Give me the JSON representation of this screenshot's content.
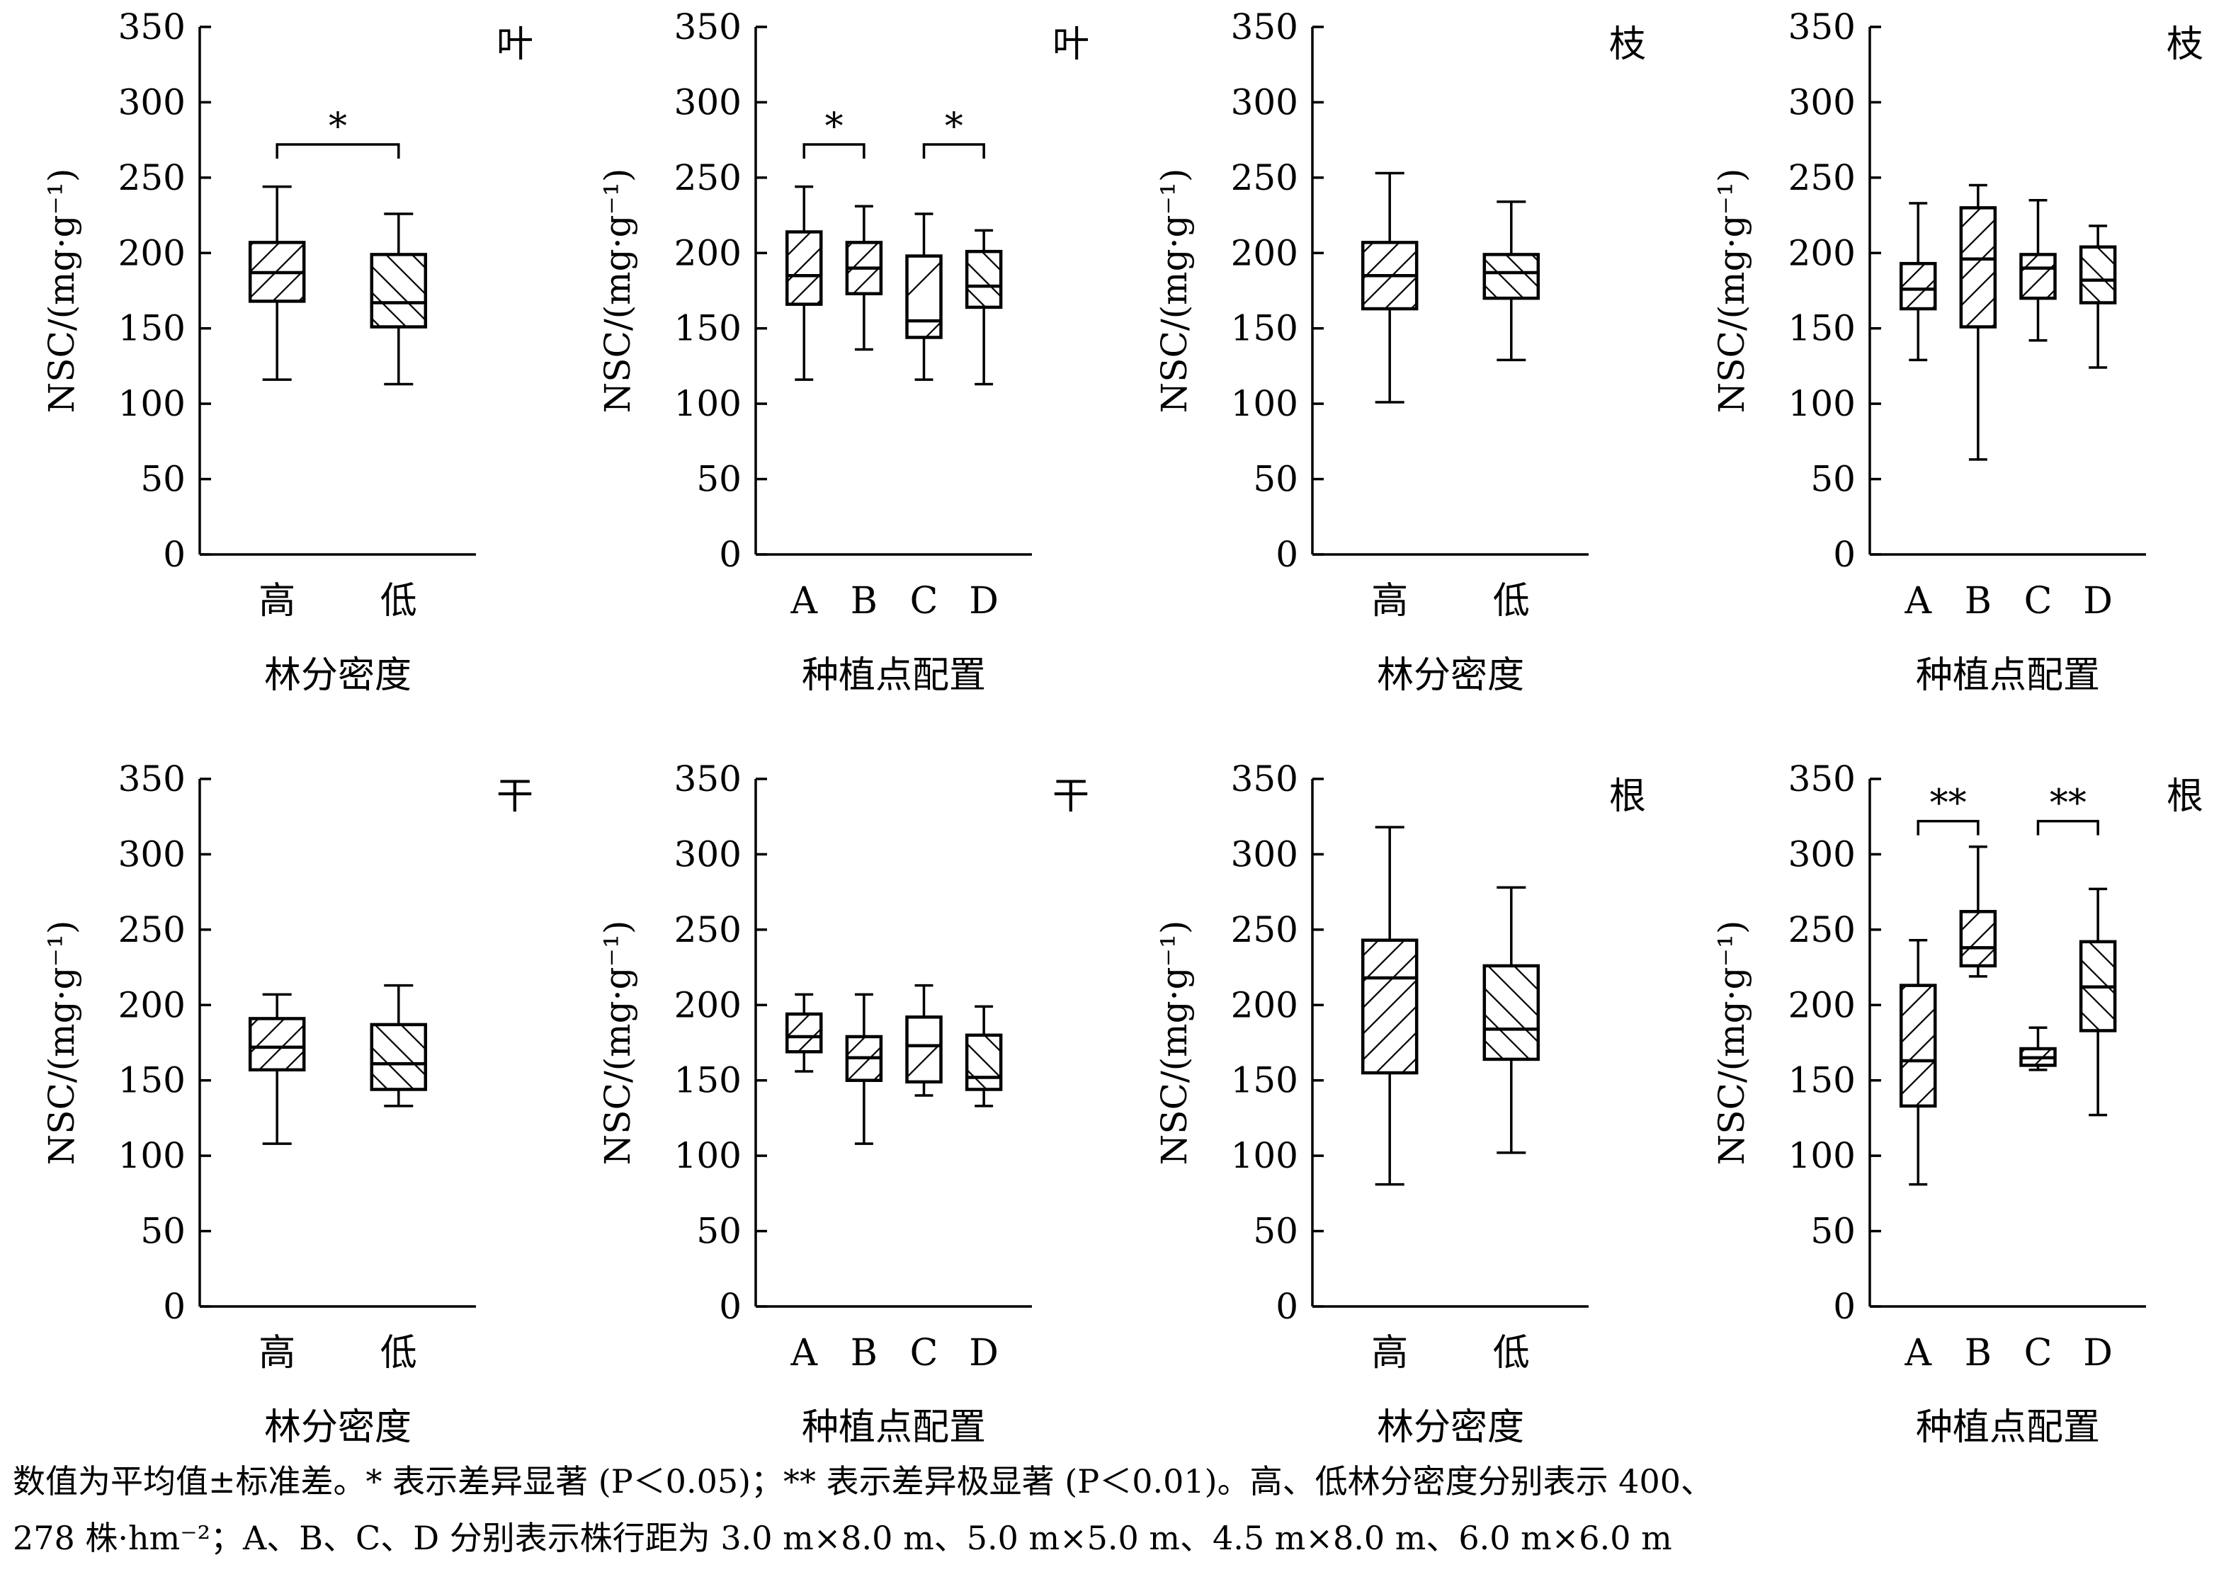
{
  "figure": {
    "caption": {
      "line1": "数值为平均值±标准差。* 表示差异显著 (P＜0.05)；** 表示差异极显著 (P＜0.01)。高、低林分密度分别表示 400、",
      "line2": "278 株·hm⁻²；A、B、C、D 分别表示株行距为 3.0 m×8.0 m、5.0 m×5.0 m、4.5 m×8.0 m、6.0 m×6.0 m"
    }
  },
  "chart_data": [
    {
      "type": "boxplot",
      "panel_label": "叶",
      "xlabel": "林分密度",
      "ylabel": "NSC/(mg·g⁻¹)",
      "ylim": [
        0,
        350
      ],
      "yticks": [
        0,
        50,
        100,
        150,
        200,
        250,
        300,
        350
      ],
      "categories": [
        "高",
        "低"
      ],
      "boxes": [
        {
          "category": "高",
          "min": 116,
          "q1": 168,
          "median": 187,
          "q3": 207,
          "max": 244,
          "hatch": "forward"
        },
        {
          "category": "低",
          "min": 113,
          "q1": 151,
          "median": 167,
          "q3": 199,
          "max": 226,
          "hatch": "backward"
        }
      ],
      "significance": [
        {
          "from": "高",
          "to": "低",
          "label": "*",
          "y": 272
        }
      ]
    },
    {
      "type": "boxplot",
      "panel_label": "叶",
      "xlabel": "种植点配置",
      "ylabel": "NSC/(mg·g⁻¹)",
      "ylim": [
        0,
        350
      ],
      "yticks": [
        0,
        50,
        100,
        150,
        200,
        250,
        300,
        350
      ],
      "categories": [
        "A",
        "B",
        "C",
        "D"
      ],
      "boxes": [
        {
          "category": "A",
          "min": 116,
          "q1": 166,
          "median": 185,
          "q3": 214,
          "max": 244,
          "hatch": "forward"
        },
        {
          "category": "B",
          "min": 136,
          "q1": 173,
          "median": 190,
          "q3": 207,
          "max": 231,
          "hatch": "forward"
        },
        {
          "category": "C",
          "min": 116,
          "q1": 144,
          "median": 155,
          "q3": 198,
          "max": 226,
          "hatch": "forward-sparse"
        },
        {
          "category": "D",
          "min": 113,
          "q1": 164,
          "median": 178,
          "q3": 201,
          "max": 215,
          "hatch": "backward"
        }
      ],
      "significance": [
        {
          "from": "A",
          "to": "B",
          "label": "*",
          "y": 272
        },
        {
          "from": "C",
          "to": "D",
          "label": "*",
          "y": 272
        }
      ]
    },
    {
      "type": "boxplot",
      "panel_label": "枝",
      "xlabel": "林分密度",
      "ylabel": "NSC/(mg·g⁻¹)",
      "ylim": [
        0,
        350
      ],
      "yticks": [
        0,
        50,
        100,
        150,
        200,
        250,
        300,
        350
      ],
      "categories": [
        "高",
        "低"
      ],
      "boxes": [
        {
          "category": "高",
          "min": 101,
          "q1": 163,
          "median": 185,
          "q3": 207,
          "max": 253,
          "hatch": "forward"
        },
        {
          "category": "低",
          "min": 129,
          "q1": 170,
          "median": 187,
          "q3": 199,
          "max": 234,
          "hatch": "backward"
        }
      ],
      "significance": []
    },
    {
      "type": "boxplot",
      "panel_label": "枝",
      "xlabel": "种植点配置",
      "ylabel": "NSC/(mg·g⁻¹)",
      "ylim": [
        0,
        350
      ],
      "yticks": [
        0,
        50,
        100,
        150,
        200,
        250,
        300,
        350
      ],
      "categories": [
        "A",
        "B",
        "C",
        "D"
      ],
      "boxes": [
        {
          "category": "A",
          "min": 129,
          "q1": 163,
          "median": 176,
          "q3": 193,
          "max": 233,
          "hatch": "forward"
        },
        {
          "category": "B",
          "min": 63,
          "q1": 151,
          "median": 196,
          "q3": 230,
          "max": 245,
          "hatch": "forward"
        },
        {
          "category": "C",
          "min": 142,
          "q1": 170,
          "median": 190,
          "q3": 199,
          "max": 235,
          "hatch": "forward"
        },
        {
          "category": "D",
          "min": 124,
          "q1": 167,
          "median": 182,
          "q3": 204,
          "max": 218,
          "hatch": "backward"
        }
      ],
      "significance": []
    },
    {
      "type": "boxplot",
      "panel_label": "干",
      "xlabel": "林分密度",
      "ylabel": "NSC/(mg·g⁻¹)",
      "ylim": [
        0,
        350
      ],
      "yticks": [
        0,
        50,
        100,
        150,
        200,
        250,
        300,
        350
      ],
      "categories": [
        "高",
        "低"
      ],
      "boxes": [
        {
          "category": "高",
          "min": 108,
          "q1": 157,
          "median": 172,
          "q3": 191,
          "max": 207,
          "hatch": "forward"
        },
        {
          "category": "低",
          "min": 133,
          "q1": 144,
          "median": 161,
          "q3": 187,
          "max": 213,
          "hatch": "backward"
        }
      ],
      "significance": []
    },
    {
      "type": "boxplot",
      "panel_label": "干",
      "xlabel": "种植点配置",
      "ylabel": "NSC/(mg·g⁻¹)",
      "ylim": [
        0,
        350
      ],
      "yticks": [
        0,
        50,
        100,
        150,
        200,
        250,
        300,
        350
      ],
      "categories": [
        "A",
        "B",
        "C",
        "D"
      ],
      "boxes": [
        {
          "category": "A",
          "min": 156,
          "q1": 169,
          "median": 179,
          "q3": 194,
          "max": 207,
          "hatch": "forward"
        },
        {
          "category": "B",
          "min": 108,
          "q1": 150,
          "median": 165,
          "q3": 179,
          "max": 207,
          "hatch": "forward"
        },
        {
          "category": "C",
          "min": 140,
          "q1": 149,
          "median": 173,
          "q3": 192,
          "max": 213,
          "hatch": "forward-sparse"
        },
        {
          "category": "D",
          "min": 133,
          "q1": 144,
          "median": 152,
          "q3": 180,
          "max": 199,
          "hatch": "backward"
        }
      ],
      "significance": []
    },
    {
      "type": "boxplot",
      "panel_label": "根",
      "xlabel": "林分密度",
      "ylabel": "NSC/(mg·g⁻¹)",
      "ylim": [
        0,
        350
      ],
      "yticks": [
        0,
        50,
        100,
        150,
        200,
        250,
        300,
        350
      ],
      "categories": [
        "高",
        "低"
      ],
      "boxes": [
        {
          "category": "高",
          "min": 81,
          "q1": 155,
          "median": 218,
          "q3": 243,
          "max": 318,
          "hatch": "forward"
        },
        {
          "category": "低",
          "min": 102,
          "q1": 164,
          "median": 184,
          "q3": 226,
          "max": 278,
          "hatch": "backward"
        }
      ],
      "significance": []
    },
    {
      "type": "boxplot",
      "panel_label": "根",
      "xlabel": "种植点配置",
      "ylabel": "NSC/(mg·g⁻¹)",
      "ylim": [
        0,
        350
      ],
      "yticks": [
        0,
        50,
        100,
        150,
        200,
        250,
        300,
        350
      ],
      "categories": [
        "A",
        "B",
        "C",
        "D"
      ],
      "boxes": [
        {
          "category": "A",
          "min": 81,
          "q1": 133,
          "median": 163,
          "q3": 213,
          "max": 243,
          "hatch": "forward"
        },
        {
          "category": "B",
          "min": 219,
          "q1": 226,
          "median": 238,
          "q3": 262,
          "max": 305,
          "hatch": "forward"
        },
        {
          "category": "C",
          "min": 157,
          "q1": 160,
          "median": 165,
          "q3": 171,
          "max": 185,
          "hatch": "forward"
        },
        {
          "category": "D",
          "min": 127,
          "q1": 183,
          "median": 212,
          "q3": 242,
          "max": 277,
          "hatch": "backward"
        }
      ],
      "significance": [
        {
          "from": "A",
          "to": "B",
          "label": "**",
          "y": 322
        },
        {
          "from": "C",
          "to": "D",
          "label": "**",
          "y": 322
        }
      ]
    }
  ]
}
